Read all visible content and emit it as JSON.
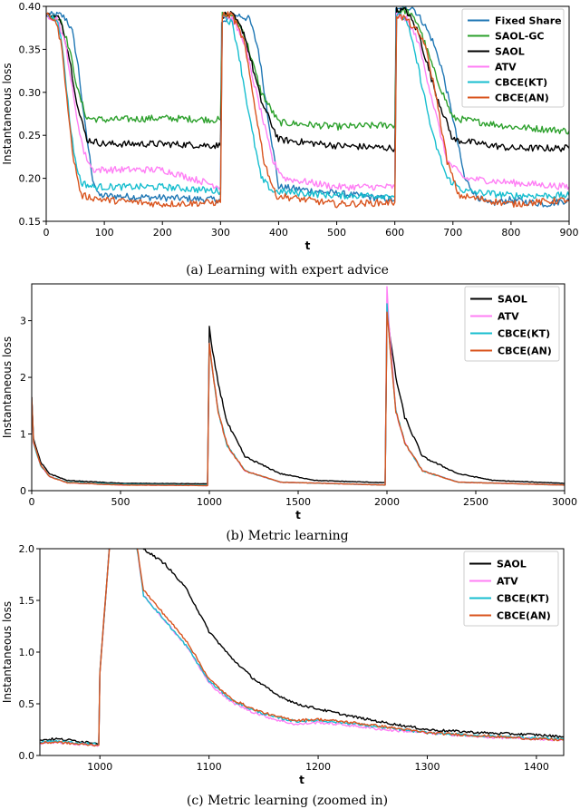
{
  "chart_data": [
    {
      "type": "line",
      "caption": "(a) Learning with expert advice",
      "xlabel": "t",
      "ylabel": "Instantaneous loss",
      "xlim": [
        0,
        900
      ],
      "ylim": [
        0.15,
        0.4
      ],
      "xticks": [
        0,
        100,
        200,
        300,
        400,
        500,
        600,
        700,
        800,
        900
      ],
      "yticks": [
        0.15,
        0.2,
        0.25,
        0.3,
        0.35,
        0.4
      ],
      "ytick_labels": [
        "0.15",
        "0.20",
        "0.25",
        "0.30",
        "0.35",
        "0.40"
      ],
      "legend_position": "top-right",
      "series": [
        {
          "name": "Fixed Share",
          "color": "#1f77b4",
          "x": [
            0,
            25,
            35,
            45,
            55,
            65,
            80,
            90,
            300,
            302,
            330,
            350,
            365,
            380,
            400,
            600,
            602,
            630,
            650,
            665,
            680,
            700,
            720,
            740,
            760,
            800,
            860,
            900
          ],
          "y": [
            0.39,
            0.39,
            0.385,
            0.37,
            0.33,
            0.27,
            0.2,
            0.18,
            0.175,
            0.38,
            0.39,
            0.385,
            0.35,
            0.28,
            0.19,
            0.175,
            0.395,
            0.4,
            0.38,
            0.36,
            0.33,
            0.27,
            0.2,
            0.18,
            0.17,
            0.175,
            0.17,
            0.175
          ]
        },
        {
          "name": "SAOL-GC",
          "color": "#2ca02c",
          "x": [
            0,
            25,
            40,
            55,
            70,
            100,
            200,
            300,
            303,
            320,
            340,
            370,
            400,
            500,
            600,
            603,
            620,
            640,
            670,
            700,
            800,
            900
          ],
          "y": [
            0.39,
            0.385,
            0.35,
            0.3,
            0.27,
            0.268,
            0.27,
            0.268,
            0.39,
            0.39,
            0.37,
            0.3,
            0.265,
            0.26,
            0.262,
            0.395,
            0.395,
            0.38,
            0.32,
            0.27,
            0.26,
            0.255
          ]
        },
        {
          "name": "SAOL",
          "color": "#000000",
          "x": [
            0,
            25,
            40,
            55,
            70,
            100,
            200,
            300,
            303,
            320,
            340,
            370,
            400,
            500,
            600,
            603,
            620,
            640,
            670,
            700,
            800,
            900
          ],
          "y": [
            0.39,
            0.385,
            0.34,
            0.28,
            0.245,
            0.24,
            0.24,
            0.238,
            0.39,
            0.39,
            0.37,
            0.29,
            0.245,
            0.238,
            0.235,
            0.395,
            0.395,
            0.37,
            0.3,
            0.245,
            0.235,
            0.235
          ]
        },
        {
          "name": "ATV",
          "color": "#ff7ff5",
          "x": [
            0,
            20,
            35,
            50,
            65,
            80,
            100,
            200,
            300,
            303,
            320,
            340,
            365,
            390,
            410,
            500,
            600,
            603,
            620,
            640,
            665,
            690,
            720,
            800,
            900
          ],
          "y": [
            0.39,
            0.385,
            0.35,
            0.28,
            0.23,
            0.21,
            0.21,
            0.21,
            0.19,
            0.39,
            0.385,
            0.36,
            0.29,
            0.22,
            0.2,
            0.19,
            0.19,
            0.39,
            0.385,
            0.36,
            0.29,
            0.22,
            0.2,
            0.195,
            0.19
          ]
        },
        {
          "name": "CBCE(KT)",
          "color": "#17becf",
          "x": [
            0,
            20,
            30,
            40,
            50,
            60,
            80,
            200,
            300,
            303,
            320,
            330,
            350,
            370,
            390,
            500,
            600,
            603,
            620,
            640,
            665,
            690,
            720,
            800,
            900
          ],
          "y": [
            0.39,
            0.385,
            0.34,
            0.27,
            0.22,
            0.195,
            0.19,
            0.19,
            0.185,
            0.39,
            0.38,
            0.35,
            0.27,
            0.2,
            0.185,
            0.18,
            0.18,
            0.39,
            0.385,
            0.33,
            0.25,
            0.2,
            0.185,
            0.18,
            0.18
          ]
        },
        {
          "name": "CBCE(AN)",
          "color": "#d9541e",
          "x": [
            0,
            15,
            25,
            35,
            45,
            60,
            100,
            200,
            300,
            303,
            320,
            340,
            355,
            375,
            395,
            500,
            600,
            603,
            620,
            650,
            670,
            690,
            710,
            800,
            900
          ],
          "y": [
            0.39,
            0.385,
            0.36,
            0.3,
            0.23,
            0.18,
            0.175,
            0.17,
            0.172,
            0.39,
            0.39,
            0.36,
            0.3,
            0.22,
            0.18,
            0.17,
            0.172,
            0.39,
            0.385,
            0.36,
            0.3,
            0.22,
            0.18,
            0.17,
            0.175
          ]
        }
      ]
    },
    {
      "type": "line",
      "caption": "(b) Metric learning",
      "xlabel": "t",
      "ylabel": "Instantaneous loss",
      "xlim": [
        0,
        3000
      ],
      "ylim": [
        0,
        3.65
      ],
      "xticks": [
        0,
        500,
        1000,
        1500,
        2000,
        2500,
        3000
      ],
      "yticks": [
        0,
        1,
        2,
        3
      ],
      "ytick_labels": [
        "0",
        "1",
        "2",
        "3"
      ],
      "legend_position": "top-right",
      "series": [
        {
          "name": "SAOL",
          "color": "#000000",
          "x": [
            0,
            10,
            50,
            100,
            200,
            500,
            990,
            1000,
            1010,
            1050,
            1100,
            1200,
            1400,
            1600,
            1990,
            2000,
            2010,
            2050,
            2100,
            2200,
            2400,
            2600,
            3000
          ],
          "y": [
            1.65,
            0.9,
            0.5,
            0.3,
            0.18,
            0.13,
            0.12,
            2.9,
            2.6,
            1.9,
            1.2,
            0.6,
            0.3,
            0.18,
            0.14,
            3.1,
            2.9,
            2.0,
            1.3,
            0.6,
            0.3,
            0.18,
            0.13
          ]
        },
        {
          "name": "ATV",
          "color": "#ff7ff5",
          "x": [
            0,
            10,
            50,
            100,
            200,
            500,
            990,
            1000,
            1010,
            1050,
            1100,
            1200,
            1400,
            1990,
            2000,
            2010,
            2050,
            2100,
            2200,
            2400,
            3000
          ],
          "y": [
            1.65,
            0.85,
            0.45,
            0.25,
            0.14,
            0.1,
            0.09,
            2.6,
            2.3,
            1.4,
            0.8,
            0.35,
            0.15,
            0.1,
            3.6,
            3.0,
            1.4,
            0.85,
            0.35,
            0.15,
            0.1
          ]
        },
        {
          "name": "CBCE(KT)",
          "color": "#17becf",
          "x": [
            0,
            10,
            50,
            100,
            200,
            500,
            990,
            1000,
            1010,
            1050,
            1100,
            1200,
            1400,
            1990,
            2000,
            2010,
            2050,
            2100,
            2200,
            2400,
            3000
          ],
          "y": [
            1.65,
            0.85,
            0.45,
            0.25,
            0.15,
            0.11,
            0.1,
            2.6,
            2.3,
            1.4,
            0.8,
            0.35,
            0.15,
            0.1,
            3.3,
            2.8,
            1.4,
            0.85,
            0.35,
            0.15,
            0.1
          ]
        },
        {
          "name": "CBCE(AN)",
          "color": "#d9541e",
          "x": [
            0,
            10,
            50,
            100,
            200,
            500,
            990,
            1000,
            1010,
            1050,
            1100,
            1200,
            1400,
            1990,
            2000,
            2010,
            2050,
            2100,
            2200,
            2400,
            3000
          ],
          "y": [
            1.65,
            0.85,
            0.45,
            0.25,
            0.14,
            0.1,
            0.09,
            2.6,
            2.3,
            1.4,
            0.8,
            0.35,
            0.15,
            0.1,
            3.15,
            2.8,
            1.4,
            0.85,
            0.35,
            0.15,
            0.1
          ]
        }
      ]
    },
    {
      "type": "line",
      "caption": "(c) Metric learning (zoomed in)",
      "xlabel": "t",
      "ylabel": "Instantaneous loss",
      "xlim": [
        945,
        1425
      ],
      "ylim": [
        0,
        2.0
      ],
      "xticks": [
        1000,
        1100,
        1200,
        1300,
        1400
      ],
      "yticks": [
        0.0,
        0.5,
        1.0,
        1.5,
        2.0
      ],
      "ytick_labels": [
        "0.0",
        "0.5",
        "1.0",
        "1.5",
        "2.0"
      ],
      "legend_position": "top-right",
      "series": [
        {
          "name": "SAOL",
          "color": "#000000",
          "x": [
            945,
            960,
            980,
            999,
            1000,
            1010,
            1030,
            1040,
            1060,
            1080,
            1100,
            1120,
            1140,
            1160,
            1180,
            1200,
            1230,
            1260,
            1300,
            1350,
            1400,
            1425
          ],
          "y": [
            0.15,
            0.16,
            0.14,
            0.12,
            0.8,
            2.2,
            2.4,
            2.0,
            1.85,
            1.6,
            1.2,
            0.95,
            0.75,
            0.6,
            0.5,
            0.45,
            0.38,
            0.32,
            0.25,
            0.22,
            0.2,
            0.18
          ]
        },
        {
          "name": "ATV",
          "color": "#ff7ff5",
          "x": [
            945,
            960,
            980,
            999,
            1000,
            1010,
            1030,
            1040,
            1060,
            1080,
            1100,
            1120,
            1140,
            1160,
            1180,
            1200,
            1230,
            1260,
            1300,
            1350,
            1400,
            1425
          ],
          "y": [
            0.12,
            0.13,
            0.11,
            0.1,
            0.8,
            2.2,
            2.3,
            1.55,
            1.3,
            1.05,
            0.7,
            0.52,
            0.42,
            0.35,
            0.3,
            0.32,
            0.29,
            0.25,
            0.22,
            0.18,
            0.16,
            0.15
          ]
        },
        {
          "name": "CBCE(KT)",
          "color": "#17becf",
          "x": [
            945,
            960,
            980,
            999,
            1000,
            1010,
            1030,
            1040,
            1060,
            1080,
            1100,
            1120,
            1140,
            1160,
            1180,
            1200,
            1230,
            1260,
            1300,
            1350,
            1400,
            1425
          ],
          "y": [
            0.13,
            0.14,
            0.12,
            0.11,
            0.8,
            2.2,
            2.3,
            1.55,
            1.3,
            1.05,
            0.72,
            0.54,
            0.44,
            0.37,
            0.33,
            0.34,
            0.31,
            0.27,
            0.22,
            0.19,
            0.17,
            0.16
          ]
        },
        {
          "name": "CBCE(AN)",
          "color": "#d9541e",
          "x": [
            945,
            960,
            980,
            999,
            1000,
            1010,
            1030,
            1040,
            1060,
            1080,
            1100,
            1120,
            1140,
            1160,
            1180,
            1200,
            1230,
            1260,
            1300,
            1350,
            1400,
            1425
          ],
          "y": [
            0.12,
            0.13,
            0.11,
            0.1,
            0.8,
            2.2,
            2.3,
            1.6,
            1.35,
            1.1,
            0.74,
            0.55,
            0.45,
            0.38,
            0.34,
            0.35,
            0.32,
            0.28,
            0.22,
            0.19,
            0.16,
            0.15
          ]
        }
      ]
    }
  ]
}
